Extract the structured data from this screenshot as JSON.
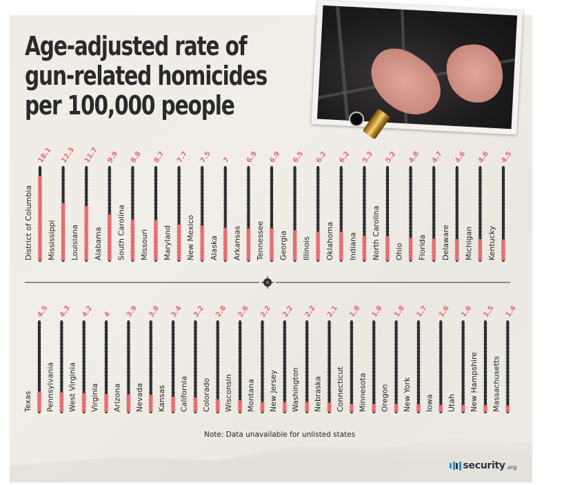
{
  "header": {
    "title": "Age-adjusted rate of\ngun-related homicides\nper 100,000 people"
  },
  "colors": {
    "fill": "#e46f6f",
    "track": "#2e2e2e",
    "label": "#222222",
    "title": "#2a2a2a",
    "logo_blue": "#1f8fd8",
    "logo_dark": "#2b3242"
  },
  "images": {
    "photo": "handcuffed-hands-photo",
    "bullet_hole": "bullet-hole-icon",
    "shell_casing": "bullet-casing-icon",
    "divider_ornament": "crosshair-icon"
  },
  "footer": {
    "note": "Note: Data unavailable for unlisted states",
    "logo_text": "security",
    "logo_tld": ".org"
  },
  "chart_data": {
    "type": "bar",
    "orientation": "vertical (thermometer-style bars)",
    "title": "Age-adjusted rate of gun-related homicides per 100,000 people",
    "xlabel": "",
    "ylabel": "",
    "ylim": [
      0,
      20
    ],
    "grid": false,
    "legend": "none",
    "rows": [
      {
        "categories": [
          "District of Columbia",
          "Mississippi",
          "Louisiana",
          "Alabama",
          "South Carolina",
          "Missouri",
          "Maryland",
          "New Mexico",
          "Alaska",
          "Arkansas",
          "Tennessee",
          "Georgia",
          "Illinois",
          "Oklahoma",
          "Indiana",
          "North Carolina",
          "Ohio",
          "Florida",
          "Delaware",
          "Michigan",
          "Kentucky"
        ],
        "values": [
          18.1,
          12.3,
          11.7,
          9.9,
          8.8,
          8.7,
          7.7,
          7.5,
          7,
          6.9,
          6.9,
          6.5,
          6.2,
          6.2,
          5.3,
          5.2,
          4.8,
          4.7,
          4.6,
          4.6,
          4.5
        ],
        "labels": [
          "18.1",
          "12.3",
          "11.7",
          "9.9",
          "8.8",
          "8.7",
          "7.7",
          "7.5",
          "7",
          "6.9",
          "6.9",
          "6.5",
          "6.2",
          "6.2",
          "5.3",
          "5.2",
          "4.8",
          "4.7",
          "4.6",
          "4.6",
          "4.5"
        ]
      },
      {
        "categories": [
          "Texas",
          "Pennsylvania",
          "West Virginia",
          "Virginia",
          "Arizona",
          "Nevada",
          "Kansas",
          "California",
          "Colorado",
          "Wisconsin",
          "Montana",
          "New Jersey",
          "Washington",
          "Nebraska",
          "Connecticut",
          "Minnesota",
          "Oregon",
          "New York",
          "Iowa",
          "Utah",
          "New Hampshire",
          "Massachusetts"
        ],
        "values": [
          4.5,
          4.3,
          4.2,
          4,
          3.9,
          3.8,
          3.4,
          3.2,
          2.8,
          2.6,
          2.2,
          2.2,
          2.2,
          2.1,
          1.8,
          1.8,
          1.8,
          1.7,
          1.6,
          1.6,
          1.5,
          1.4
        ],
        "labels": [
          "4.5",
          "4.3",
          "4.2",
          "4",
          "3.9",
          "3.8",
          "3.4",
          "3.2",
          "2.8",
          "2.6",
          "2.2",
          "2.2",
          "2.2",
          "2.1",
          "1.8",
          "1.8",
          "1.8",
          "1.7",
          "1.6",
          "1.6",
          "1.5",
          "1.4"
        ]
      }
    ]
  }
}
